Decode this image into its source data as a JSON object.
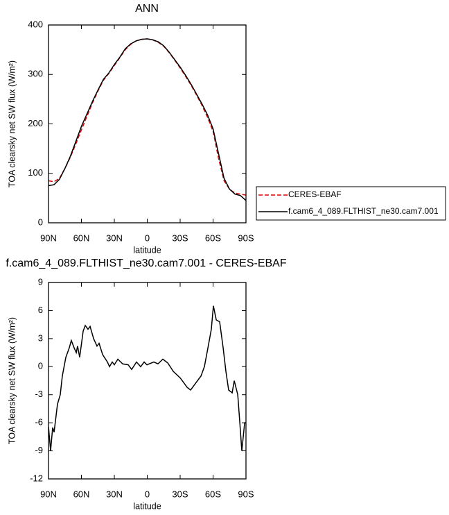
{
  "chart_data": [
    {
      "type": "line",
      "title": "ANN",
      "xlabel": "latitude",
      "ylabel": "TOA clearsky net SW flux (W/m²)",
      "x": [
        90,
        85,
        80,
        75,
        70,
        65,
        60,
        55,
        50,
        45,
        40,
        35,
        30,
        25,
        20,
        15,
        10,
        5,
        0,
        -5,
        -10,
        -15,
        -20,
        -25,
        -30,
        -35,
        -40,
        -45,
        -50,
        -55,
        -60,
        -65,
        -70,
        -75,
        -80,
        -85,
        -90
      ],
      "series": [
        {
          "name": "CERES-EBAF",
          "color": "#e00000",
          "line_style": "dashed",
          "values": [
            85,
            83,
            90,
            110,
            133,
            160,
            188,
            215,
            242,
            266,
            288,
            302,
            318,
            334,
            350,
            361,
            368,
            371,
            372,
            370,
            365,
            357,
            344,
            329,
            313,
            296,
            278,
            258,
            237,
            213,
            185,
            130,
            85,
            68,
            60,
            58,
            56
          ]
        },
        {
          "name": "f.cam6_4_089.FLTHIST_ne30.cam7.001",
          "color": "#000000",
          "line_style": "solid",
          "values": [
            75,
            77,
            88,
            110,
            135,
            165,
            195,
            220,
            245,
            268,
            290,
            303,
            320,
            335,
            352,
            362,
            368,
            371,
            372,
            370,
            366,
            358,
            345,
            330,
            315,
            298,
            280,
            260,
            240,
            218,
            190,
            140,
            90,
            68,
            58,
            55,
            45
          ]
        }
      ],
      "xlim": [
        90,
        -90
      ],
      "xticks": [
        {
          "value": 90,
          "label": "90N"
        },
        {
          "value": 60,
          "label": "60N"
        },
        {
          "value": 30,
          "label": "30N"
        },
        0,
        {
          "value": -30,
          "label": "30S"
        },
        {
          "value": -60,
          "label": "60S"
        },
        {
          "value": -90,
          "label": "90S"
        }
      ],
      "ylim": [
        0,
        400
      ],
      "yticks": [
        0,
        100,
        200,
        300,
        400
      ],
      "legend": "right"
    },
    {
      "type": "line",
      "title": "f.cam6_4_089.FLTHIST_ne30.cam7.001 - CERES-EBAF",
      "xlabel": "latitude",
      "ylabel": "TOA clearsky net SW flux (W/m²)",
      "x": [
        90,
        88.1,
        86.2,
        84.9,
        81.8,
        79.3,
        77.4,
        74.2,
        71.1,
        69.2,
        66.6,
        64.7,
        63.5,
        61.6,
        58.4,
        56.5,
        54,
        52.1,
        48.9,
        45.8,
        43.9,
        40.7,
        36.3,
        34.4,
        31.9,
        30,
        26.8,
        22.4,
        17.4,
        14.2,
        9.8,
        6,
        2.8,
        0.3,
        -6,
        -9.8,
        -14.2,
        -18.7,
        -23.7,
        -30,
        -33.2,
        -36.3,
        -39.5,
        -43.9,
        -49,
        -52.1,
        -55.3,
        -58.4,
        -60.3,
        -62.9,
        -66,
        -69.2,
        -71.7,
        -74.2,
        -77.4,
        -79.3,
        -82.5,
        -84.4,
        -86.2,
        -88.8,
        -90
      ],
      "series": [
        {
          "color": "#000000",
          "line_style": "solid",
          "values": [
            -6.4,
            -9,
            -6.5,
            -7,
            -4,
            -3,
            -1,
            1,
            2,
            2.8,
            2,
            1.5,
            2.2,
            1,
            3.8,
            4.4,
            4,
            4.3,
            3,
            2.2,
            2.5,
            1.3,
            0.5,
            0,
            0.5,
            0.2,
            0.8,
            0.3,
            0.2,
            -0.3,
            0.5,
            0,
            0.5,
            0.2,
            0.5,
            0.3,
            0.8,
            0.4,
            -0.5,
            -1.2,
            -1.7,
            -2.2,
            -2.5,
            -1.8,
            -1,
            0,
            2,
            4,
            6.5,
            5,
            4.8,
            2,
            -0.5,
            -2.5,
            -2.8,
            -1.5,
            -3,
            -6,
            -9,
            -6,
            -6
          ]
        }
      ],
      "xlim": [
        90,
        -90
      ],
      "xticks": [
        {
          "value": 90,
          "label": "90N"
        },
        {
          "value": 60,
          "label": "60N"
        },
        {
          "value": 30,
          "label": "30N"
        },
        0,
        {
          "value": -30,
          "label": "30S"
        },
        {
          "value": -60,
          "label": "60S"
        },
        {
          "value": -90,
          "label": "90S"
        }
      ],
      "ylim": [
        -12,
        9
      ],
      "yticks": [
        -12,
        -9,
        -6,
        -3,
        0,
        3,
        6,
        9
      ]
    }
  ]
}
